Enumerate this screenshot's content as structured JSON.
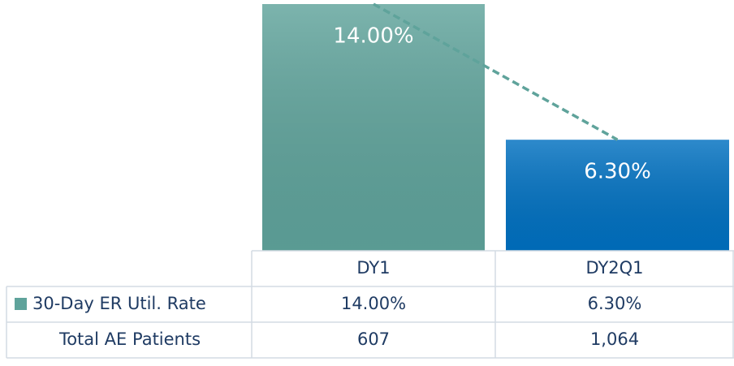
{
  "chart_data": {
    "type": "bar",
    "categories": [
      "DY1",
      "DY2Q1"
    ],
    "series": [
      {
        "name": "30-Day ER Util. Rate",
        "color": "#5fa39b",
        "colors": [
          "#5fa39b",
          "#0070c0"
        ],
        "values": [
          14,
          6.3
        ],
        "value_labels": [
          "14.00%",
          "6.30%"
        ],
        "trendline": true
      },
      {
        "name": "Total AE Patients",
        "values": [
          607,
          1064
        ],
        "value_labels": [
          "607",
          "1,064"
        ]
      }
    ]
  }
}
